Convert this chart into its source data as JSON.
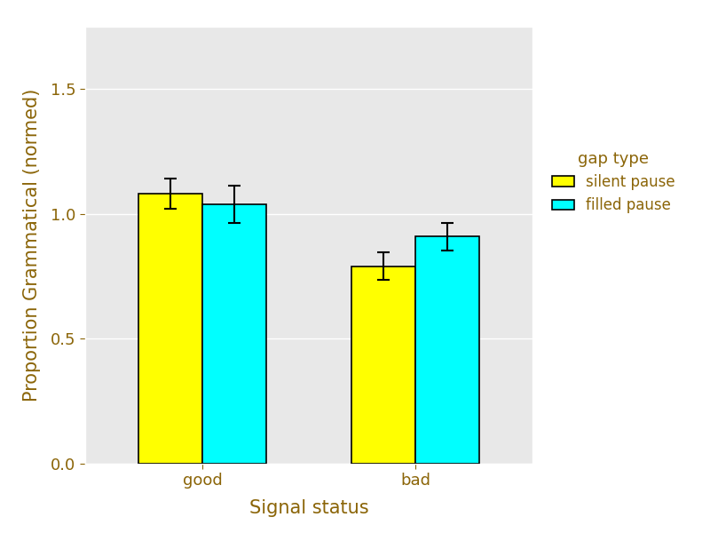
{
  "categories": [
    "good",
    "bad"
  ],
  "silent_pause": [
    1.08,
    0.79
  ],
  "filled_pause": [
    1.04,
    0.91
  ],
  "silent_pause_err": [
    0.06,
    0.055
  ],
  "filled_pause_err": [
    0.075,
    0.055
  ],
  "silent_color": "#FFFF00",
  "filled_color": "#00FFFF",
  "bar_edge_color": "#000000",
  "bar_width": 0.3,
  "ylabel": "Proportion Grammatical (normed)",
  "xlabel": "Signal status",
  "legend_title": "gap type",
  "legend_labels": [
    "silent pause",
    "filled pause"
  ],
  "ylim": [
    0,
    1.75
  ],
  "yticks": [
    0.0,
    0.5,
    1.0,
    1.5
  ],
  "plot_bg_color": "#E8E8E8",
  "fig_bg_color": "#FFFFFF",
  "text_color": "#8B6508",
  "axis_label_fontsize": 15,
  "tick_label_fontsize": 13,
  "legend_fontsize": 12,
  "legend_title_fontsize": 13
}
